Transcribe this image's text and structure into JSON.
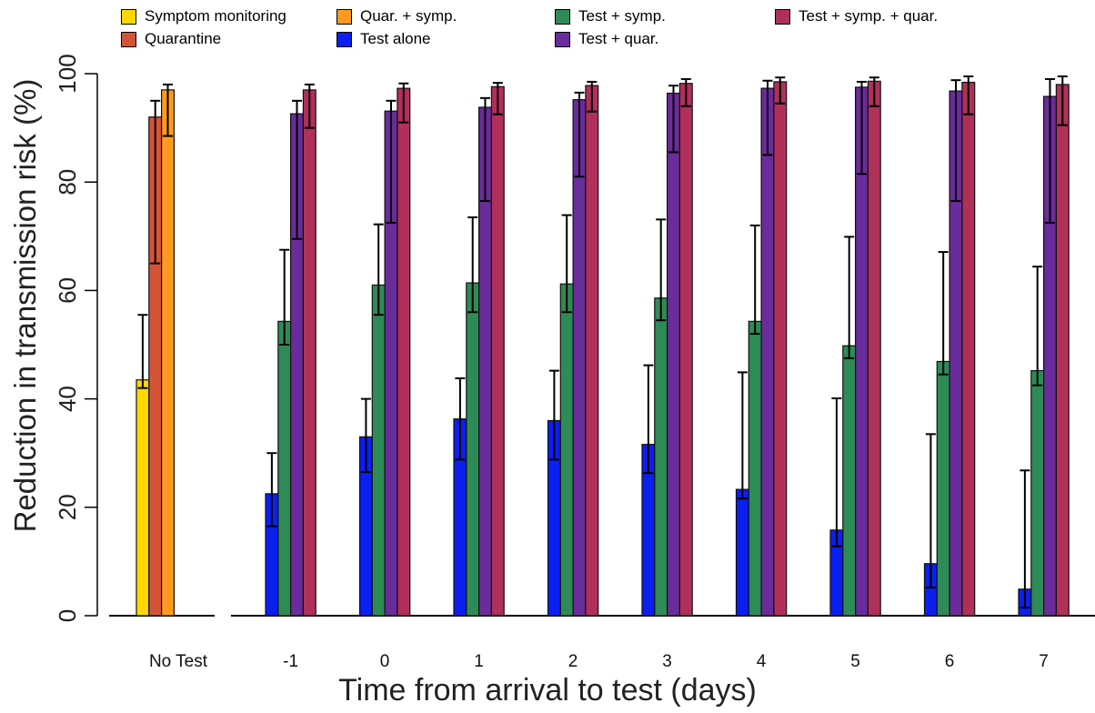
{
  "chart_data": {
    "type": "bar",
    "title": "",
    "xlabel": "Time from arrival to test (days)",
    "ylabel": "Reduction in transmission risk (%)",
    "ylim": [
      0,
      100
    ],
    "yticks": [
      "0",
      "20",
      "40",
      "60",
      "80",
      "100"
    ],
    "categories": [
      "No Test",
      "-1",
      "0",
      "1",
      "2",
      "3",
      "4",
      "5",
      "6",
      "7"
    ],
    "legend_position": "top",
    "series": [
      {
        "name": "Symptom monitoring",
        "color": "#FFD700",
        "values": [
          43.5,
          null,
          null,
          null,
          null,
          null,
          null,
          null,
          null,
          null
        ],
        "lower": [
          42.0,
          null,
          null,
          null,
          null,
          null,
          null,
          null,
          null,
          null
        ],
        "upper": [
          55.5,
          null,
          null,
          null,
          null,
          null,
          null,
          null,
          null,
          null
        ]
      },
      {
        "name": "Quarantine",
        "color": "#D4543A",
        "values": [
          92.0,
          null,
          null,
          null,
          null,
          null,
          null,
          null,
          null,
          null
        ],
        "lower": [
          65.0,
          null,
          null,
          null,
          null,
          null,
          null,
          null,
          null,
          null
        ],
        "upper": [
          95.0,
          null,
          null,
          null,
          null,
          null,
          null,
          null,
          null,
          null
        ]
      },
      {
        "name": "Quar. + symp.",
        "color": "#FF9A1F",
        "values": [
          97.0,
          null,
          null,
          null,
          null,
          null,
          null,
          null,
          null,
          null
        ],
        "lower": [
          88.5,
          null,
          null,
          null,
          null,
          null,
          null,
          null,
          null,
          null
        ],
        "upper": [
          98.0,
          null,
          null,
          null,
          null,
          null,
          null,
          null,
          null,
          null
        ]
      },
      {
        "name": "Test alone",
        "color": "#0A1FF0",
        "values": [
          null,
          22.5,
          33.0,
          36.3,
          36.0,
          31.6,
          23.3,
          15.8,
          9.6,
          4.9
        ],
        "lower": [
          null,
          16.5,
          26.5,
          28.8,
          28.8,
          26.3,
          21.6,
          12.8,
          5.2,
          1.5
        ],
        "upper": [
          null,
          30.0,
          40.0,
          43.8,
          45.2,
          46.2,
          44.9,
          40.1,
          33.5,
          26.8
        ]
      },
      {
        "name": "Test + symp.",
        "color": "#2E8B57",
        "values": [
          null,
          54.3,
          61.0,
          61.4,
          61.2,
          58.6,
          54.3,
          49.8,
          46.9,
          45.2
        ],
        "lower": [
          null,
          50.0,
          55.5,
          56.0,
          56.0,
          54.5,
          52.0,
          47.5,
          44.5,
          42.5
        ],
        "upper": [
          null,
          67.5,
          72.2,
          73.5,
          73.9,
          73.1,
          72.0,
          69.9,
          67.1,
          64.4
        ]
      },
      {
        "name": "Test + quar.",
        "color": "#6A2C9A",
        "values": [
          null,
          92.6,
          93.1,
          93.8,
          95.2,
          96.4,
          97.3,
          97.5,
          96.8,
          95.8
        ],
        "lower": [
          null,
          69.5,
          72.5,
          76.5,
          81.0,
          85.5,
          85.0,
          81.5,
          76.5,
          72.5
        ],
        "upper": [
          null,
          95.0,
          95.0,
          95.5,
          96.5,
          97.8,
          98.7,
          98.5,
          98.8,
          99.0
        ]
      },
      {
        "name": "Test + symp. + quar.",
        "color": "#B0305A",
        "values": [
          null,
          97.0,
          97.3,
          97.6,
          97.8,
          98.2,
          98.5,
          98.6,
          98.4,
          98.0
        ],
        "lower": [
          null,
          90.0,
          91.0,
          92.5,
          93.0,
          94.0,
          94.5,
          94.0,
          92.5,
          90.5
        ],
        "upper": [
          null,
          98.0,
          98.2,
          98.3,
          98.5,
          99.0,
          99.3,
          99.3,
          99.5,
          99.5
        ]
      }
    ]
  }
}
